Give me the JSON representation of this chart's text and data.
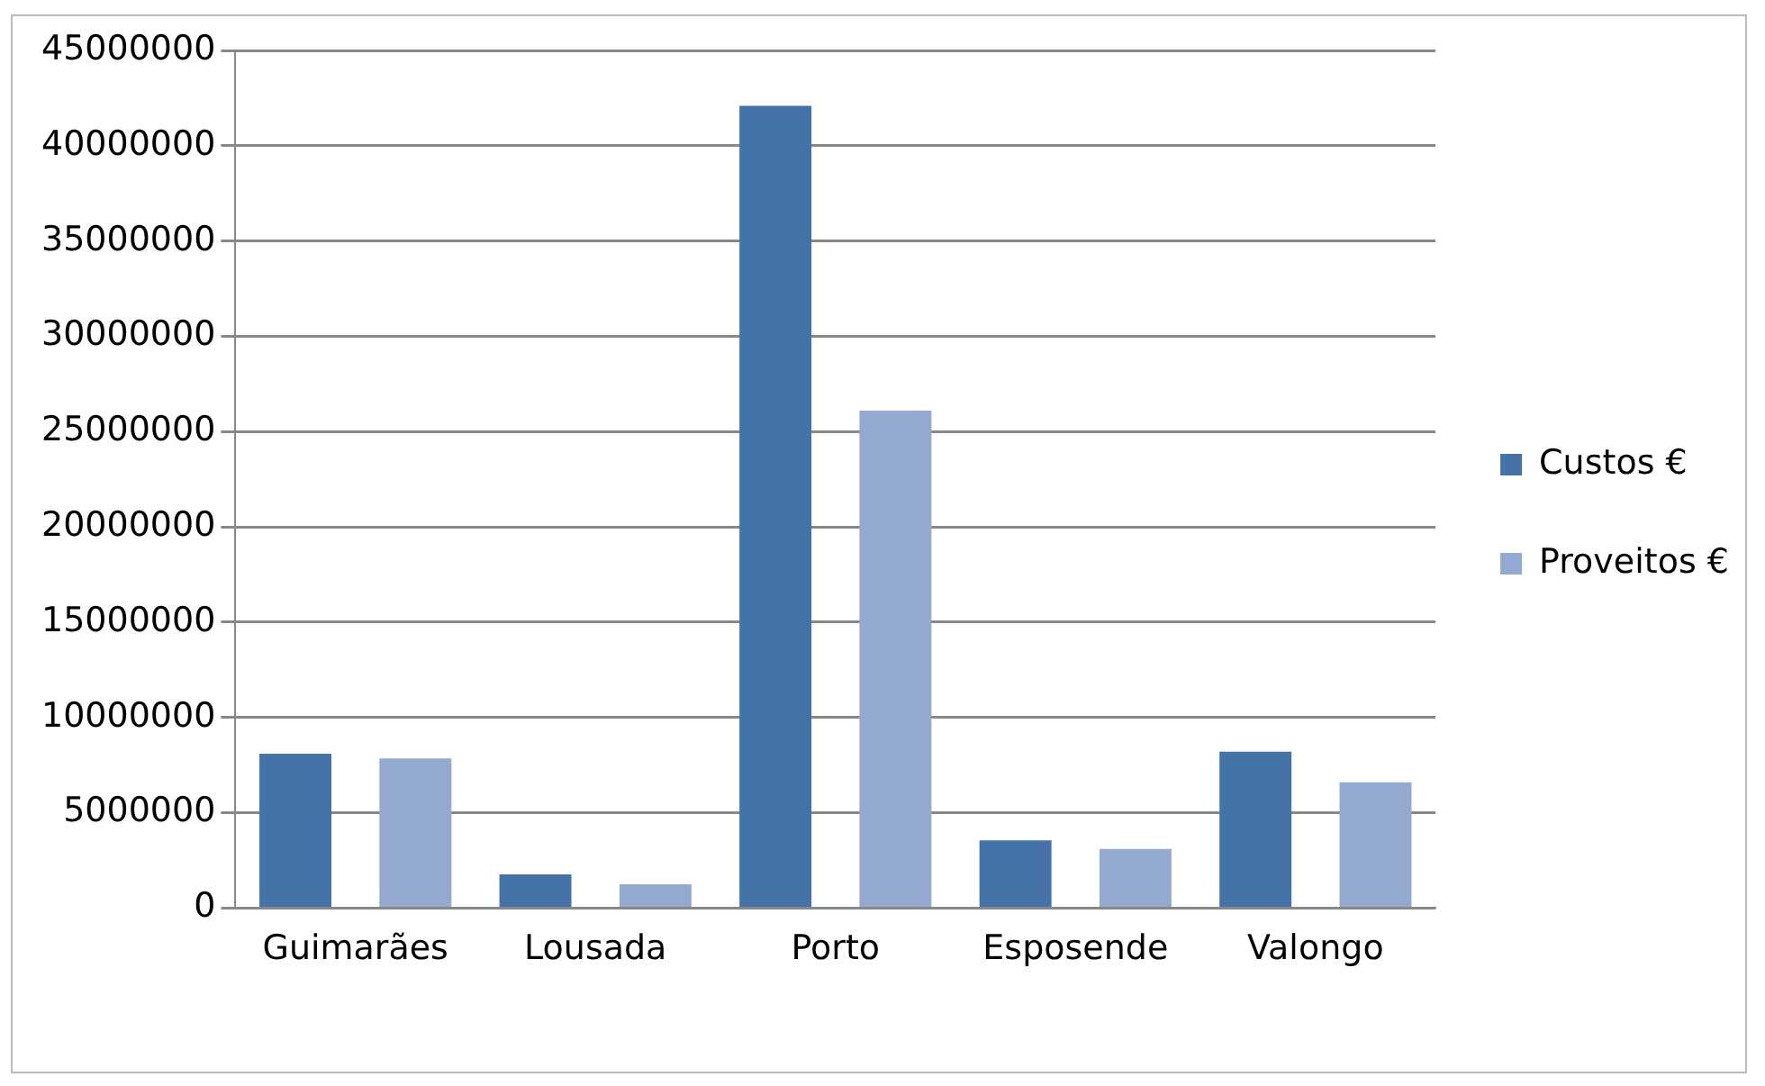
{
  "chart_data": {
    "type": "bar",
    "categories": [
      "Guimarães",
      "Lousada",
      "Porto",
      "Esposende",
      "Valongo"
    ],
    "series": [
      {
        "name": "Custos €",
        "color": "#4572a7",
        "values": [
          8100000,
          1770000,
          42100000,
          3550000,
          8200000
        ]
      },
      {
        "name": "Proveitos €",
        "color": "#93a9cf",
        "values": [
          7850000,
          1250000,
          26100000,
          3100000,
          6600000
        ]
      }
    ],
    "ylim": [
      0,
      45000000
    ],
    "yticks": [
      0,
      5000000,
      10000000,
      15000000,
      20000000,
      25000000,
      30000000,
      35000000,
      40000000,
      45000000
    ],
    "grid": "y",
    "legend": "right"
  }
}
